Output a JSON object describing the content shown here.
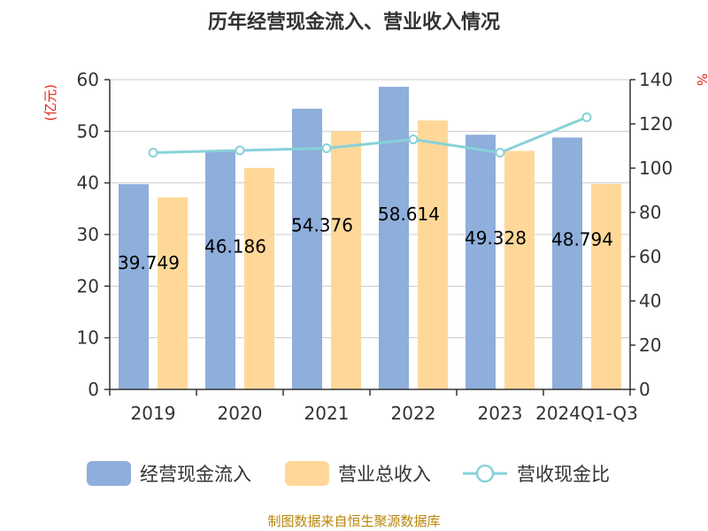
{
  "chart_data": {
    "type": "bar",
    "title": "历年经营现金流入、营业收入情况",
    "categories": [
      "2019",
      "2020",
      "2021",
      "2022",
      "2023",
      "2024Q1-Q3"
    ],
    "series": [
      {
        "name": "经营现金流入",
        "type": "bar",
        "axis": "left",
        "color": "#8eaedb",
        "values": [
          39.749,
          46.186,
          54.376,
          58.614,
          49.328,
          48.794
        ]
      },
      {
        "name": "营业总收入",
        "type": "bar",
        "axis": "left",
        "color": "#ffd899",
        "values": [
          37.2,
          42.9,
          50.0,
          52.1,
          46.2,
          39.8
        ]
      },
      {
        "name": "营收现金比",
        "type": "line",
        "axis": "right",
        "color": "#86d2d8",
        "values": [
          107,
          108,
          109,
          113,
          107,
          123
        ]
      }
    ],
    "data_labels": [
      "39.749",
      "46.186",
      "54.376",
      "58.614",
      "49.328",
      "48.794"
    ],
    "y_left": {
      "unit": "(亿元)",
      "ylim": [
        0,
        60
      ],
      "ticks": [
        "0",
        "10",
        "20",
        "30",
        "40",
        "50",
        "60"
      ]
    },
    "y_right": {
      "unit": "%",
      "ylim": [
        0,
        140
      ],
      "ticks": [
        "0",
        "20",
        "40",
        "60",
        "80",
        "100",
        "120",
        "140"
      ]
    },
    "grid": true,
    "legend_position": "bottom",
    "source": "制图数据来自恒生聚源数据库"
  }
}
